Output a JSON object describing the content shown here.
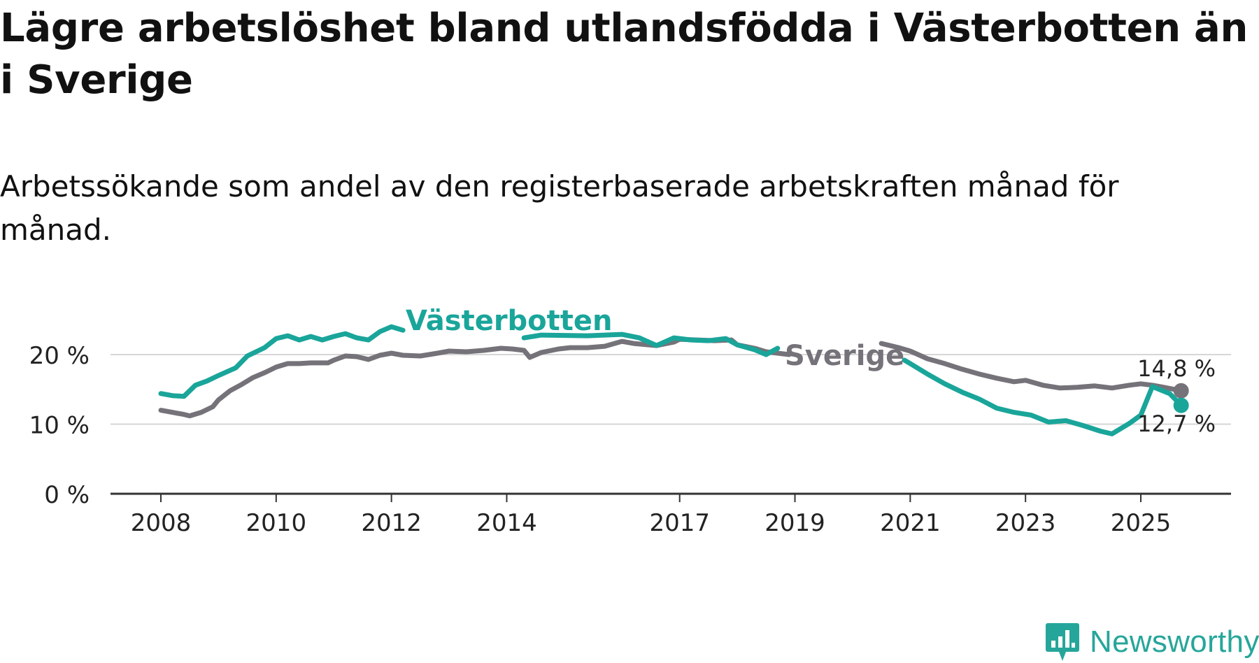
{
  "title": "Lägre arbetslöshet bland utlandsfödda i Västerbotten än i Sverige",
  "subtitle": "Arbetssökande som andel av den registerbaserade arbetskraften månad för månad.",
  "brand": {
    "name": "Newsworthy",
    "color": "#26a69a"
  },
  "chart_data": {
    "type": "line",
    "title": "Lägre arbetslöshet bland utlandsfödda i Västerbotten än i Sverige",
    "subtitle": "Arbetssökande som andel av den registerbaserade arbetskraften månad för månad.",
    "xlabel": "",
    "ylabel": "",
    "xlim": [
      2007.5,
      2026.4
    ],
    "ylim": [
      0,
      22
    ],
    "grid": true,
    "x_ticks": [
      2008,
      2010,
      2012,
      2014,
      2017,
      2019,
      2021,
      2023,
      2025
    ],
    "x_tick_labels": [
      "2008",
      "2010",
      "2012",
      "2014",
      "2017",
      "2019",
      "2021",
      "2023",
      "2025"
    ],
    "y_ticks": [
      0,
      10,
      20
    ],
    "y_tick_labels": [
      "0 %",
      "10 %",
      "20 %"
    ],
    "series": [
      {
        "name": "Sverige",
        "label": "Sverige",
        "color": "#757379",
        "end_label": "14,8 %",
        "points": [
          [
            2008.0,
            12.0
          ],
          [
            2008.2,
            11.7
          ],
          [
            2008.4,
            11.4
          ],
          [
            2008.5,
            11.2
          ],
          [
            2008.7,
            11.7
          ],
          [
            2008.9,
            12.5
          ],
          [
            2009.0,
            13.5
          ],
          [
            2009.2,
            14.8
          ],
          [
            2009.4,
            15.7
          ],
          [
            2009.6,
            16.7
          ],
          [
            2009.8,
            17.4
          ],
          [
            2010.0,
            18.2
          ],
          [
            2010.2,
            18.7
          ],
          [
            2010.4,
            18.7
          ],
          [
            2010.6,
            18.8
          ],
          [
            2010.9,
            18.8
          ],
          [
            2011.0,
            19.2
          ],
          [
            2011.2,
            19.8
          ],
          [
            2011.4,
            19.7
          ],
          [
            2011.6,
            19.3
          ],
          [
            2011.8,
            19.9
          ],
          [
            2012.0,
            20.2
          ],
          [
            2012.2,
            19.9
          ],
          [
            2012.5,
            19.8
          ],
          [
            2012.8,
            20.2
          ],
          [
            2013.0,
            20.5
          ],
          [
            2013.3,
            20.4
          ],
          [
            2013.6,
            20.6
          ],
          [
            2013.9,
            20.9
          ],
          [
            2014.1,
            20.8
          ],
          [
            2014.3,
            20.6
          ],
          [
            2014.4,
            19.6
          ],
          [
            2014.6,
            20.3
          ],
          [
            2014.9,
            20.8
          ],
          [
            2015.1,
            21.0
          ],
          [
            2015.4,
            21.0
          ],
          [
            2015.7,
            21.2
          ],
          [
            2016.0,
            21.9
          ],
          [
            2016.2,
            21.6
          ],
          [
            2016.6,
            21.3
          ],
          [
            2016.9,
            21.8
          ],
          [
            2017.0,
            22.2
          ],
          [
            2017.3,
            22.1
          ],
          [
            2017.6,
            22.0
          ],
          [
            2017.9,
            22.1
          ],
          [
            2018.0,
            21.4
          ],
          [
            2018.3,
            20.9
          ],
          [
            2018.5,
            20.4
          ],
          [
            2018.9,
            20.0
          ],
          null,
          [
            2020.5,
            21.6
          ],
          [
            2020.8,
            21.0
          ],
          [
            2021.0,
            20.5
          ],
          [
            2021.3,
            19.4
          ],
          [
            2021.6,
            18.7
          ],
          [
            2021.9,
            17.9
          ],
          [
            2022.2,
            17.2
          ],
          [
            2022.5,
            16.6
          ],
          [
            2022.8,
            16.1
          ],
          [
            2023.0,
            16.3
          ],
          [
            2023.3,
            15.6
          ],
          [
            2023.6,
            15.2
          ],
          [
            2023.9,
            15.3
          ],
          [
            2024.2,
            15.5
          ],
          [
            2024.5,
            15.2
          ],
          [
            2024.8,
            15.6
          ],
          [
            2025.0,
            15.8
          ],
          [
            2025.2,
            15.6
          ],
          [
            2025.4,
            15.3
          ],
          [
            2025.7,
            14.8
          ]
        ]
      },
      {
        "name": "Västerbotten",
        "label": "Västerbotten",
        "color": "#1aa59a",
        "end_label": "12,7 %",
        "points": [
          [
            2008.0,
            14.4
          ],
          [
            2008.2,
            14.1
          ],
          [
            2008.4,
            14.0
          ],
          [
            2008.6,
            15.6
          ],
          [
            2008.8,
            16.2
          ],
          [
            2009.0,
            17.0
          ],
          [
            2009.3,
            18.1
          ],
          [
            2009.5,
            19.8
          ],
          [
            2009.8,
            21.0
          ],
          [
            2010.0,
            22.3
          ],
          [
            2010.2,
            22.7
          ],
          [
            2010.4,
            22.1
          ],
          [
            2010.6,
            22.6
          ],
          [
            2010.8,
            22.1
          ],
          [
            2011.0,
            22.6
          ],
          [
            2011.2,
            23.0
          ],
          [
            2011.4,
            22.4
          ],
          [
            2011.6,
            22.1
          ],
          [
            2011.8,
            23.3
          ],
          [
            2012.0,
            24.0
          ],
          [
            2012.2,
            23.5
          ],
          null,
          [
            2014.3,
            22.4
          ],
          [
            2014.6,
            22.8
          ],
          [
            2015.4,
            22.7
          ],
          [
            2016.0,
            22.9
          ],
          [
            2016.3,
            22.4
          ],
          [
            2016.6,
            21.3
          ],
          [
            2016.9,
            22.4
          ],
          [
            2017.2,
            22.1
          ],
          [
            2017.5,
            22.0
          ],
          [
            2017.8,
            22.3
          ],
          [
            2018.0,
            21.4
          ],
          [
            2018.3,
            20.7
          ],
          [
            2018.5,
            20.0
          ],
          [
            2018.7,
            20.9
          ],
          null,
          [
            2020.9,
            19.2
          ],
          [
            2021.0,
            18.7
          ],
          [
            2021.3,
            17.2
          ],
          [
            2021.6,
            15.8
          ],
          [
            2021.9,
            14.6
          ],
          [
            2022.2,
            13.6
          ],
          [
            2022.5,
            12.3
          ],
          [
            2022.8,
            11.7
          ],
          [
            2023.1,
            11.3
          ],
          [
            2023.4,
            10.3
          ],
          [
            2023.7,
            10.5
          ],
          [
            2024.0,
            9.8
          ],
          [
            2024.3,
            9.0
          ],
          [
            2024.5,
            8.6
          ],
          [
            2024.8,
            10.1
          ],
          [
            2025.0,
            11.3
          ],
          [
            2025.2,
            15.4
          ],
          [
            2025.5,
            14.4
          ],
          [
            2025.7,
            12.7
          ]
        ]
      }
    ]
  }
}
